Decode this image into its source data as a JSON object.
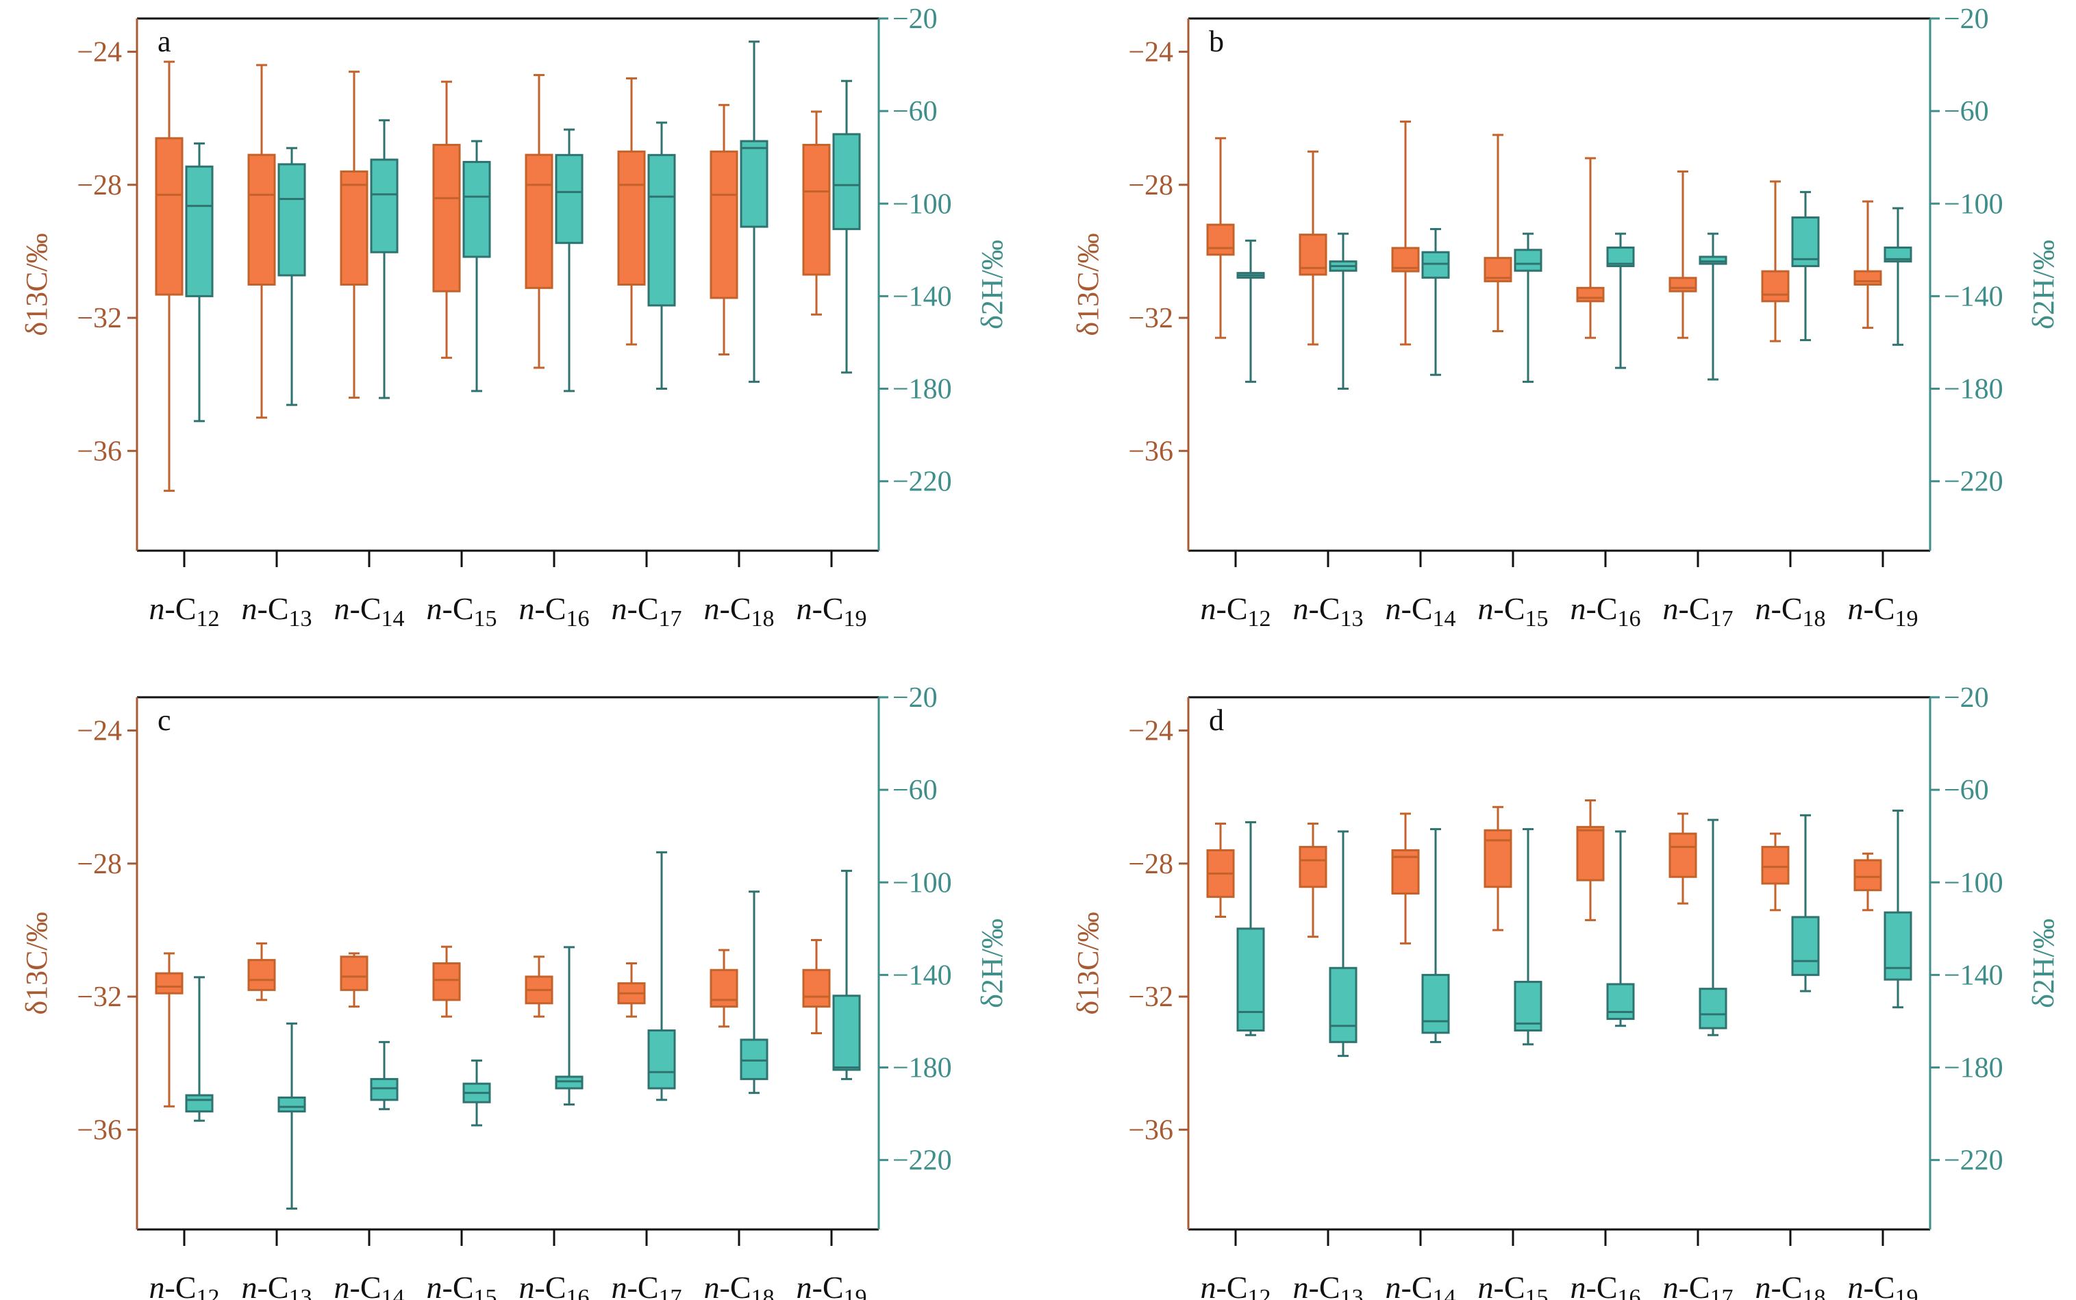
{
  "colors": {
    "carbon_fill": "#F47A45",
    "carbon_stroke": "#C4622B",
    "carbon_axis": "#A85A32",
    "hydrogen_fill": "#4FC4B6",
    "hydrogen_stroke": "#2E7370",
    "hydrogen_axis": "#3E8E89",
    "frame": "#111111"
  },
  "chart_data": [
    {
      "panel": "a",
      "type": "box",
      "categories": [
        "n-C12",
        "n-C13",
        "n-C14",
        "n-C15",
        "n-C16",
        "n-C17",
        "n-C18",
        "n-C19"
      ],
      "ylabel_left": "δ13C/‰",
      "ylabel_right": "δ2H/‰",
      "ylim_left": [
        -39,
        -23
      ],
      "ylim_right": [
        -250,
        -20
      ],
      "yticks_left": [
        "-24",
        "-28",
        "-32",
        "-36"
      ],
      "yticks_right": [
        "-20",
        "-60",
        "-100",
        "-140",
        "-180",
        "-220"
      ],
      "box_fields": [
        "min",
        "q1",
        "median",
        "q3",
        "max"
      ],
      "series": [
        {
          "axis": "left",
          "color": "#F47A45",
          "boxes": [
            [
              -37.2,
              -31.3,
              -28.3,
              -26.6,
              -24.3
            ],
            [
              -35.0,
              -31.0,
              -28.3,
              -27.1,
              -24.4
            ],
            [
              -34.4,
              -31.0,
              -28.0,
              -27.6,
              -24.6
            ],
            [
              -33.2,
              -31.2,
              -28.4,
              -26.8,
              -24.9
            ],
            [
              -33.5,
              -31.1,
              -28.0,
              -27.1,
              -24.7
            ],
            [
              -32.8,
              -31.0,
              -28.0,
              -27.0,
              -24.8
            ],
            [
              -33.1,
              -31.4,
              -28.3,
              -27.0,
              -25.6
            ],
            [
              -31.9,
              -30.7,
              -28.2,
              -26.8,
              -25.8
            ]
          ]
        },
        {
          "axis": "right",
          "color": "#4FC4B6",
          "boxes": [
            [
              -194,
              -140,
              -101,
              -84,
              -74
            ],
            [
              -187,
              -131,
              -98,
              -83,
              -76
            ],
            [
              -184,
              -121,
              -96,
              -81,
              -64
            ],
            [
              -181,
              -123,
              -97,
              -82,
              -73
            ],
            [
              -181,
              -117,
              -95,
              -79,
              -68
            ],
            [
              -180,
              -144,
              -97,
              -79,
              -65
            ],
            [
              -177,
              -110,
              -76,
              -73,
              -30
            ],
            [
              -173,
              -111,
              -92,
              -70,
              -47
            ]
          ]
        }
      ]
    },
    {
      "panel": "b",
      "type": "box",
      "categories": [
        "n-C12",
        "n-C13",
        "n-C14",
        "n-C15",
        "n-C16",
        "n-C17",
        "n-C18",
        "n-C19"
      ],
      "ylabel_left": "δ13C/‰",
      "ylabel_right": "δ2H/‰",
      "ylim_left": [
        -39,
        -23
      ],
      "ylim_right": [
        -250,
        -20
      ],
      "yticks_left": [
        "-24",
        "-28",
        "-32",
        "-36"
      ],
      "yticks_right": [
        "-20",
        "-60",
        "-100",
        "-140",
        "-180",
        "-220"
      ],
      "box_fields": [
        "min",
        "q1",
        "median",
        "q3",
        "max"
      ],
      "series": [
        {
          "axis": "left",
          "color": "#F47A45",
          "boxes": [
            [
              -32.6,
              -30.1,
              -29.9,
              -29.2,
              -26.6
            ],
            [
              -32.8,
              -30.7,
              -30.5,
              -29.5,
              -27.0
            ],
            [
              -32.8,
              -30.6,
              -30.5,
              -29.9,
              -26.1
            ],
            [
              -32.4,
              -30.9,
              -30.8,
              -30.2,
              -26.5
            ],
            [
              -32.6,
              -31.5,
              -31.4,
              -31.1,
              -27.2
            ],
            [
              -32.6,
              -31.2,
              -31.1,
              -30.8,
              -27.6
            ],
            [
              -32.7,
              -31.5,
              -31.3,
              -30.6,
              -27.9
            ],
            [
              -32.3,
              -31.0,
              -30.9,
              -30.6,
              -28.5
            ]
          ]
        },
        {
          "axis": "right",
          "color": "#4FC4B6",
          "boxes": [
            [
              -177,
              -132,
              -131,
              -130,
              -116
            ],
            [
              -180,
              -129,
              -127,
              -125,
              -113
            ],
            [
              -174,
              -132,
              -126,
              -121,
              -111
            ],
            [
              -177,
              -129,
              -126,
              -120,
              -113
            ],
            [
              -171,
              -127,
              -126,
              -119,
              -113
            ],
            [
              -176,
              -126,
              -125,
              -123,
              -113
            ],
            [
              -159,
              -127,
              -124,
              -106,
              -95
            ],
            [
              -161,
              -125,
              -124,
              -119,
              -102
            ]
          ]
        }
      ]
    },
    {
      "panel": "c",
      "type": "box",
      "categories": [
        "n-C12",
        "n-C13",
        "n-C14",
        "n-C15",
        "n-C16",
        "n-C17",
        "n-C18",
        "n-C19"
      ],
      "ylabel_left": "δ13C/‰",
      "ylabel_right": "δ2H/‰",
      "ylim_left": [
        -39,
        -23
      ],
      "ylim_right": [
        -250,
        -20
      ],
      "yticks_left": [
        "-24",
        "-28",
        "-32",
        "-36"
      ],
      "yticks_right": [
        "-20",
        "-60",
        "-100",
        "-140",
        "-180",
        "-220"
      ],
      "box_fields": [
        "min",
        "q1",
        "median",
        "q3",
        "max"
      ],
      "series": [
        {
          "axis": "left",
          "color": "#F47A45",
          "boxes": [
            [
              -35.3,
              -31.9,
              -31.7,
              -31.3,
              -30.7
            ],
            [
              -32.1,
              -31.8,
              -31.5,
              -30.9,
              -30.4
            ],
            [
              -32.3,
              -31.8,
              -31.4,
              -30.8,
              -30.7
            ],
            [
              -32.6,
              -32.1,
              -31.5,
              -31.0,
              -30.5
            ],
            [
              -32.6,
              -32.2,
              -31.8,
              -31.4,
              -30.8
            ],
            [
              -32.6,
              -32.2,
              -31.9,
              -31.6,
              -31.0
            ],
            [
              -32.9,
              -32.3,
              -32.1,
              -31.2,
              -30.6
            ],
            [
              -33.1,
              -32.3,
              -32.0,
              -31.2,
              -30.3
            ]
          ]
        },
        {
          "axis": "right",
          "color": "#4FC4B6",
          "boxes": [
            [
              -203,
              -199,
              -194,
              -192,
              -141
            ],
            [
              -241,
              -199,
              -197,
              -193,
              -161
            ],
            [
              -198,
              -194,
              -189,
              -185,
              -169
            ],
            [
              -205,
              -195,
              -191,
              -187,
              -177
            ],
            [
              -196,
              -189,
              -186,
              -184,
              -128
            ],
            [
              -194,
              -189,
              -182,
              -164,
              -87
            ],
            [
              -191,
              -185,
              -177,
              -168,
              -104
            ],
            [
              -185,
              -181,
              -180,
              -149,
              -95
            ]
          ]
        }
      ]
    },
    {
      "panel": "d",
      "type": "box",
      "categories": [
        "n-C12",
        "n-C13",
        "n-C14",
        "n-C15",
        "n-C16",
        "n-C17",
        "n-C18",
        "n-C19"
      ],
      "ylabel_left": "δ13C/‰",
      "ylabel_right": "δ2H/‰",
      "ylim_left": [
        -39,
        -23
      ],
      "ylim_right": [
        -250,
        -20
      ],
      "yticks_left": [
        "-24",
        "-28",
        "-32",
        "-36"
      ],
      "yticks_right": [
        "-20",
        "-60",
        "-100",
        "-140",
        "-180",
        "-220"
      ],
      "box_fields": [
        "min",
        "q1",
        "median",
        "q3",
        "max"
      ],
      "series": [
        {
          "axis": "left",
          "color": "#F47A45",
          "boxes": [
            [
              -29.6,
              -29.0,
              -28.3,
              -27.6,
              -26.8
            ],
            [
              -30.2,
              -28.7,
              -27.9,
              -27.5,
              -26.8
            ],
            [
              -30.4,
              -28.9,
              -27.8,
              -27.6,
              -26.5
            ],
            [
              -30.0,
              -28.7,
              -27.3,
              -27.0,
              -26.3
            ],
            [
              -29.7,
              -28.5,
              -27.0,
              -26.9,
              -26.1
            ],
            [
              -29.2,
              -28.4,
              -27.5,
              -27.1,
              -26.5
            ],
            [
              -29.4,
              -28.6,
              -28.1,
              -27.5,
              -27.1
            ],
            [
              -29.4,
              -28.8,
              -28.4,
              -27.9,
              -27.7
            ]
          ]
        },
        {
          "axis": "right",
          "color": "#4FC4B6",
          "boxes": [
            [
              -166,
              -164,
              -156,
              -120,
              -74
            ],
            [
              -175,
              -169,
              -162,
              -137,
              -78
            ],
            [
              -169,
              -165,
              -160,
              -140,
              -77
            ],
            [
              -170,
              -164,
              -161,
              -143,
              -77
            ],
            [
              -162,
              -159,
              -156,
              -144,
              -78
            ],
            [
              -166,
              -163,
              -157,
              -146,
              -73
            ],
            [
              -147,
              -140,
              -134,
              -115,
              -71
            ],
            [
              -154,
              -142,
              -137,
              -113,
              -69
            ]
          ]
        }
      ]
    }
  ]
}
